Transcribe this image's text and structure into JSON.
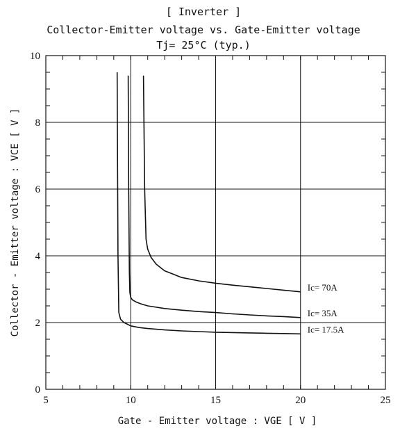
{
  "chart_data": {
    "type": "line",
    "title_lines": [
      "[ Inverter ]",
      "Collector-Emitter voltage vs. Gate-Emitter voltage",
      "Tj= 25°C (typ.)"
    ],
    "xlabel": "Gate - Emitter voltage : VGE [ V ]",
    "ylabel": "Collector - Emitter voltage : VCE [ V ]",
    "xlim": [
      5,
      25
    ],
    "ylim": [
      0,
      10
    ],
    "xticks": [
      "5",
      "10",
      "15",
      "20",
      "25"
    ],
    "yticks": [
      "0",
      "2",
      "4",
      "6",
      "8",
      "10"
    ],
    "grid": true,
    "series": [
      {
        "name": "Ic= 70A",
        "x": [
          10.75,
          10.78,
          10.82,
          10.9,
          11.0,
          11.2,
          11.5,
          12.0,
          12.5,
          13.0,
          14.0,
          15.0,
          16.0,
          17.0,
          18.0,
          19.0,
          20.0
        ],
        "y": [
          9.4,
          8.0,
          6.0,
          4.5,
          4.2,
          3.95,
          3.75,
          3.55,
          3.45,
          3.35,
          3.25,
          3.18,
          3.12,
          3.07,
          3.02,
          2.97,
          2.92
        ]
      },
      {
        "name": "Ic= 35A",
        "x": [
          9.85,
          9.88,
          9.92,
          9.95,
          10.0,
          10.1,
          10.3,
          10.6,
          11.0,
          12.0,
          13.0,
          14.0,
          15.0,
          16.0,
          17.0,
          18.0,
          19.0,
          20.0
        ],
        "y": [
          9.4,
          6.0,
          3.5,
          2.9,
          2.75,
          2.68,
          2.62,
          2.56,
          2.5,
          2.42,
          2.37,
          2.33,
          2.3,
          2.26,
          2.23,
          2.2,
          2.18,
          2.15
        ]
      },
      {
        "name": "Ic= 17.5A",
        "x": [
          9.2,
          9.22,
          9.25,
          9.3,
          9.4,
          9.6,
          9.8,
          10.0,
          10.5,
          11.0,
          12.0,
          13.0,
          14.0,
          15.0,
          16.0,
          17.0,
          18.0,
          19.0,
          20.0
        ],
        "y": [
          9.5,
          7.0,
          4.0,
          2.3,
          2.1,
          2.0,
          1.95,
          1.9,
          1.85,
          1.82,
          1.78,
          1.75,
          1.73,
          1.71,
          1.7,
          1.69,
          1.68,
          1.67,
          1.66
        ]
      }
    ]
  }
}
